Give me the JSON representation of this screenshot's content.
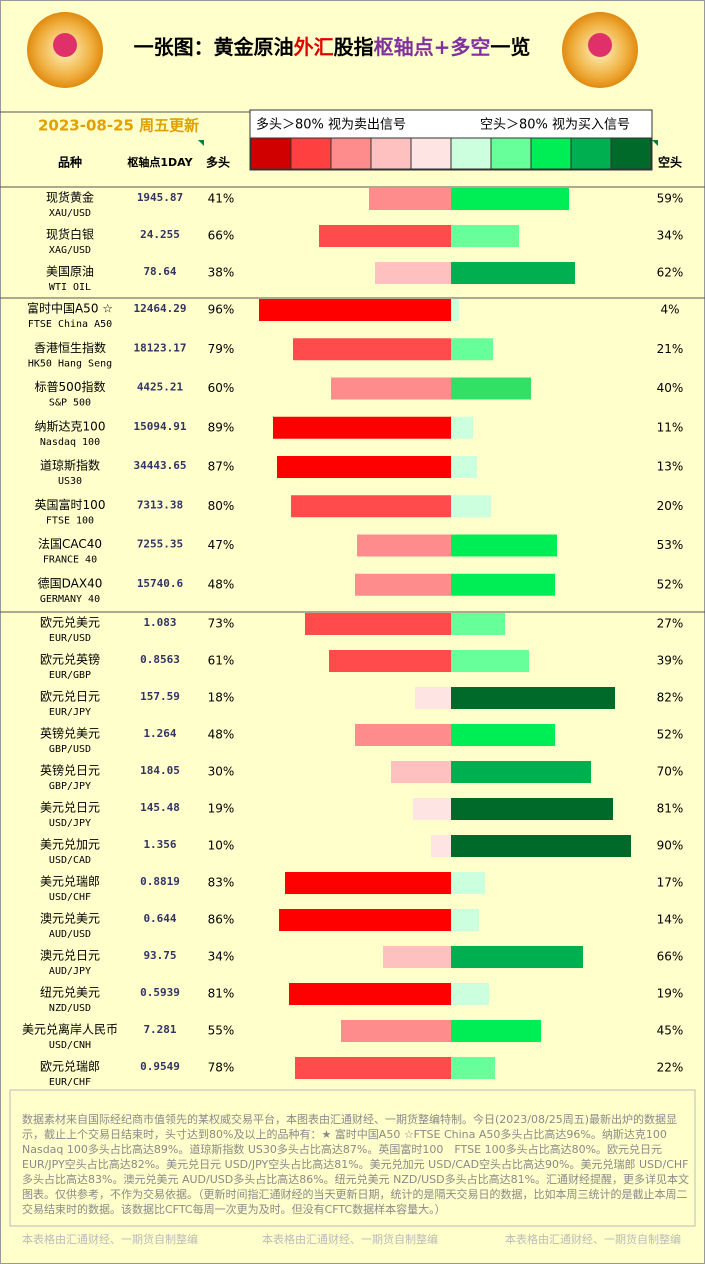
{
  "header": {
    "title_parts": [
      {
        "text": "一张图：黄金原油",
        "color": "#000000"
      },
      {
        "text": "外汇",
        "color": "#e00000"
      },
      {
        "text": "股指",
        "color": "#000000"
      },
      {
        "text": "枢轴点+多空",
        "color": "#8030a0"
      },
      {
        "text": "一览",
        "color": "#000000"
      }
    ],
    "date": "2023-08-25 周五更新"
  },
  "legend": {
    "long_text": "多头＞80% 视为卖出信号",
    "short_text": "空头＞80% 视为买入信号",
    "colors": [
      "#d00000",
      "#ff4040",
      "#ff8c8c",
      "#ffc0c0",
      "#ffe4e4",
      "#ccffdd",
      "#66ff99",
      "#00ee55",
      "#00b050",
      "#006a2a"
    ]
  },
  "columns": {
    "name": "品种",
    "pivot": "枢轴点1DAY",
    "long": "多头",
    "short": "空头"
  },
  "groups": [
    {
      "rows": [
        {
          "name": "现货黄金",
          "code": "XAU/USD",
          "pivot": "1945.87",
          "long": 41,
          "long_label": "41%",
          "short": 59,
          "short_label": "59%",
          "long_color": "#ff8c8c",
          "short_color": "#00ee55"
        },
        {
          "name": "现货白银",
          "code": "XAG/USD",
          "pivot": "24.255",
          "long": 66,
          "long_label": "66%",
          "short": 34,
          "short_label": "34%",
          "long_color": "#ff4b4b",
          "short_color": "#66ff99"
        },
        {
          "name": "美国原油",
          "code": "WTI OIL",
          "pivot": "78.64",
          "long": 38,
          "long_label": "38%",
          "short": 62,
          "short_label": "62%",
          "long_color": "#ffc0c0",
          "short_color": "#00b050"
        }
      ]
    },
    {
      "rows": [
        {
          "name": "富时中国A50 ☆",
          "code": "FTSE China A50",
          "pivot": "12464.29",
          "long": 96,
          "long_label": "96%",
          "short": 4,
          "short_label": "4%",
          "long_color": "#ff0000",
          "short_color": "#ccffdd"
        },
        {
          "name": "香港恒生指数",
          "code": "HK50 Hang Seng",
          "pivot": "18123.17",
          "long": 79,
          "long_label": "79%",
          "short": 21,
          "short_label": "21%",
          "long_color": "#ff4b4b",
          "short_color": "#66ff99"
        },
        {
          "name": "标普500指数",
          "code": "S&P 500",
          "pivot": "4425.21",
          "long": 60,
          "long_label": "60%",
          "short": 40,
          "short_label": "40%",
          "long_color": "#ff8c8c",
          "short_color": "#33e066"
        },
        {
          "name": "纳斯达克100",
          "code": "Nasdaq 100",
          "pivot": "15094.91",
          "long": 89,
          "long_label": "89%",
          "short": 11,
          "short_label": "11%",
          "long_color": "#ff0000",
          "short_color": "#ccffdd"
        },
        {
          "name": "道琼斯指数",
          "code": "US30",
          "pivot": "34443.65",
          "long": 87,
          "long_label": "87%",
          "short": 13,
          "short_label": "13%",
          "long_color": "#ff0000",
          "short_color": "#ccffdd"
        },
        {
          "name": "英国富时100",
          "code": "FTSE 100",
          "pivot": "7313.38",
          "long": 80,
          "long_label": "80%",
          "short": 20,
          "short_label": "20%",
          "long_color": "#ff4b4b",
          "short_color": "#ccffdd"
        },
        {
          "name": "法国CAC40",
          "code": "FRANCE 40",
          "pivot": "7255.35",
          "long": 47,
          "long_label": "47%",
          "short": 53,
          "short_label": "53%",
          "long_color": "#ff8c8c",
          "short_color": "#00ee55"
        },
        {
          "name": "德国DAX40",
          "code": "GERMANY 40",
          "pivot": "15740.6",
          "long": 48,
          "long_label": "48%",
          "short": 52,
          "short_label": "52%",
          "long_color": "#ff8c8c",
          "short_color": "#00ee55"
        }
      ]
    },
    {
      "rows": [
        {
          "name": "欧元兑美元",
          "code": "EUR/USD",
          "pivot": "1.083",
          "long": 73,
          "long_label": "73%",
          "short": 27,
          "short_label": "27%",
          "long_color": "#ff4b4b",
          "short_color": "#66ff99"
        },
        {
          "name": "欧元兑英镑",
          "code": "EUR/GBP",
          "pivot": "0.8563",
          "long": 61,
          "long_label": "61%",
          "short": 39,
          "short_label": "39%",
          "long_color": "#ff4b4b",
          "short_color": "#66ff99"
        },
        {
          "name": "欧元兑日元",
          "code": "EUR/JPY",
          "pivot": "157.59",
          "long": 18,
          "long_label": "18%",
          "short": 82,
          "short_label": "82%",
          "long_color": "#ffe4e4",
          "short_color": "#006a2a"
        },
        {
          "name": "英镑兑美元",
          "code": "GBP/USD",
          "pivot": "1.264",
          "long": 48,
          "long_label": "48%",
          "short": 52,
          "short_label": "52%",
          "long_color": "#ff8c8c",
          "short_color": "#00ee55"
        },
        {
          "name": "英镑兑日元",
          "code": "GBP/JPY",
          "pivot": "184.05",
          "long": 30,
          "long_label": "30%",
          "short": 70,
          "short_label": "70%",
          "long_color": "#ffc0c0",
          "short_color": "#00b050"
        },
        {
          "name": "美元兑日元",
          "code": "USD/JPY",
          "pivot": "145.48",
          "long": 19,
          "long_label": "19%",
          "short": 81,
          "short_label": "81%",
          "long_color": "#ffe4e4",
          "short_color": "#006a2a"
        },
        {
          "name": "美元兑加元",
          "code": "USD/CAD",
          "pivot": "1.356",
          "long": 10,
          "long_label": "10%",
          "short": 90,
          "short_label": "90%",
          "long_color": "#ffe4e4",
          "short_color": "#006a2a"
        },
        {
          "name": "美元兑瑞郎",
          "code": "USD/CHF",
          "pivot": "0.8819",
          "long": 83,
          "long_label": "83%",
          "short": 17,
          "short_label": "17%",
          "long_color": "#ff0000",
          "short_color": "#ccffdd"
        },
        {
          "name": "澳元兑美元",
          "code": "AUD/USD",
          "pivot": "0.644",
          "long": 86,
          "long_label": "86%",
          "short": 14,
          "short_label": "14%",
          "long_color": "#ff0000",
          "short_color": "#ccffdd"
        },
        {
          "name": "澳元兑日元",
          "code": "AUD/JPY",
          "pivot": "93.75",
          "long": 34,
          "long_label": "34%",
          "short": 66,
          "short_label": "66%",
          "long_color": "#ffc0c0",
          "short_color": "#00b050"
        },
        {
          "name": "纽元兑美元",
          "code": "NZD/USD",
          "pivot": "0.5939",
          "long": 81,
          "long_label": "81%",
          "short": 19,
          "short_label": "19%",
          "long_color": "#ff0000",
          "short_color": "#ccffdd"
        },
        {
          "name": "美元兑离岸人民币",
          "code": "USD/CNH",
          "pivot": "7.281",
          "long": 55,
          "long_label": "55%",
          "short": 45,
          "short_label": "45%",
          "long_color": "#ff8c8c",
          "short_color": "#00ee55"
        },
        {
          "name": "欧元兑瑞郎",
          "code": "EUR/CHF",
          "pivot": "0.9549",
          "long": 78,
          "long_label": "78%",
          "short": 22,
          "short_label": "22%",
          "long_color": "#ff4b4b",
          "short_color": "#66ff99"
        }
      ]
    }
  ],
  "footer": {
    "note": "数据素材来自国际经纪商市值领先的某权威交易平台，本图表由汇通财经、一期货整编特制。今日(2023/08/25周五)最新出炉的数据显示，截止上个交易日结束时，头寸达到80%及以上的品种有：★ 富时中国A50 ☆FTSE China A50多头占比高达96%。纳斯达克100 Nasdaq 100多头占比高达89%。道琼斯指数 US30多头占比高达87%。英国富时100　FTSE 100多头占比高达80%。欧元兑日元 EUR/JPY空头占比高达82%。美元兑日元 USD/JPY空头占比高达81%。美元兑加元 USD/CAD空头占比高达90%。美元兑瑞郎 USD/CHF多头占比高达83%。澳元兑美元 AUD/USD多头占比高达86%。纽元兑美元 NZD/USD多头占比高达81%。汇通财经提醒，更多详见本文图表。仅供参考，不作为交易依据。（更新时间指汇通财经的当天更新日期，统计的是隔天交易日的数据，比如本周三统计的是截止本周二交易结束时的数据。该数据比CFTC每周一次更为及时。但没有CFTC数据样本容量大。）",
    "watermark": "本表格由汇通财经、一期货自制整编"
  }
}
